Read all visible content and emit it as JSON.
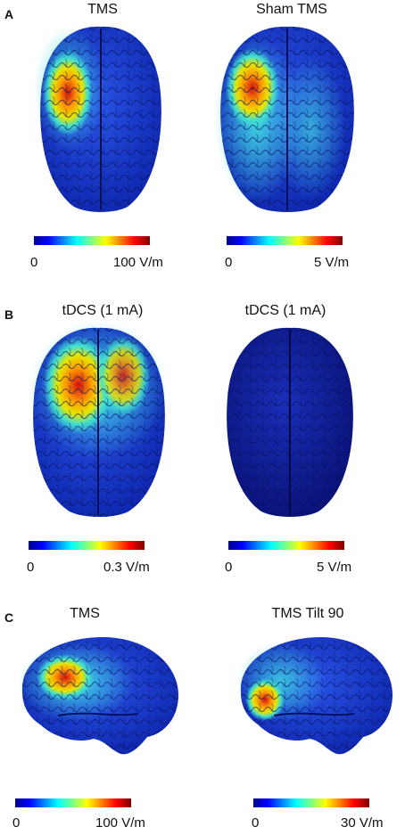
{
  "colors": {
    "jet": [
      "#00008f",
      "#0000ff",
      "#0080ff",
      "#00ffff",
      "#80ff80",
      "#ffff00",
      "#ff8000",
      "#ff0000",
      "#800000"
    ],
    "brain_low": "#1a3dd6",
    "brain_dark": "#0a1a80"
  },
  "panels": {
    "A": {
      "letter": "A",
      "left": {
        "title": "TMS",
        "cbar_min": "0",
        "cbar_max": "100 V/m"
      },
      "right": {
        "title": "Sham TMS",
        "cbar_min": "0",
        "cbar_max": "5 V/m"
      }
    },
    "B": {
      "letter": "B",
      "left": {
        "title": "tDCS (1 mA)",
        "cbar_min": "0",
        "cbar_max": "0.3 V/m"
      },
      "right": {
        "title": "tDCS (1 mA)",
        "cbar_min": "0",
        "cbar_max": "5 V/m"
      }
    },
    "C": {
      "letter": "C",
      "left": {
        "title": "TMS",
        "cbar_min": "0",
        "cbar_max": "100 V/m"
      },
      "right": {
        "title": "TMS Tilt 90",
        "cbar_min": "0",
        "cbar_max": "30 V/m"
      }
    }
  }
}
